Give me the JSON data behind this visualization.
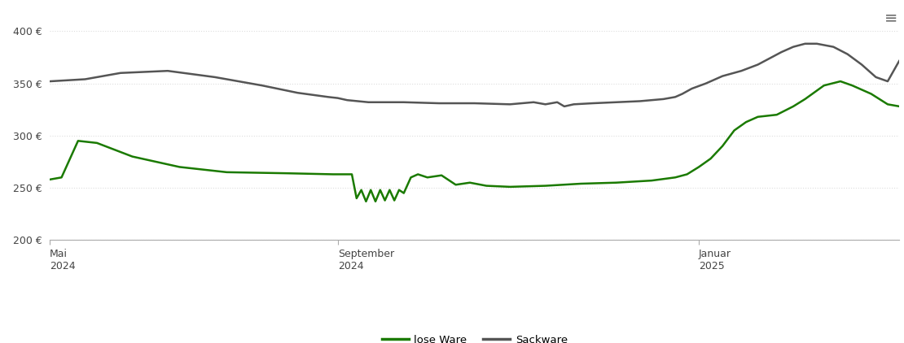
{
  "background_color": "#ffffff",
  "plot_bg_color": "#ffffff",
  "grid_color": "#dddddd",
  "loose_ware_color": "#1a7a00",
  "sack_ware_color": "#555555",
  "ylim": [
    200,
    420
  ],
  "yticks": [
    200,
    250,
    300,
    350,
    400
  ],
  "legend_labels": [
    "lose Ware",
    "Sackware"
  ],
  "xtick_labels": [
    "Mai\n2024",
    "September\n2024",
    "Januar\n2025"
  ],
  "xtick_positions": [
    0,
    122,
    275
  ],
  "total_days": 360,
  "loose_ware": {
    "x": [
      0,
      5,
      12,
      20,
      35,
      55,
      75,
      100,
      120,
      128,
      130,
      132,
      134,
      136,
      138,
      140,
      142,
      144,
      146,
      148,
      150,
      153,
      156,
      160,
      166,
      172,
      178,
      185,
      195,
      210,
      225,
      240,
      255,
      265,
      270,
      275,
      280,
      285,
      290,
      295,
      300,
      308,
      315,
      320,
      328,
      335,
      340,
      348,
      355,
      360
    ],
    "y": [
      258,
      260,
      295,
      293,
      280,
      270,
      265,
      264,
      263,
      263,
      240,
      248,
      237,
      248,
      237,
      248,
      238,
      248,
      238,
      248,
      245,
      260,
      263,
      260,
      262,
      253,
      255,
      252,
      251,
      252,
      254,
      255,
      257,
      260,
      263,
      270,
      278,
      290,
      305,
      313,
      318,
      320,
      328,
      335,
      348,
      352,
      348,
      340,
      330,
      328
    ]
  },
  "sack_ware": {
    "x": [
      0,
      15,
      30,
      50,
      70,
      90,
      105,
      118,
      122,
      126,
      135,
      150,
      165,
      180,
      195,
      205,
      210,
      215,
      218,
      222,
      230,
      240,
      250,
      255,
      260,
      265,
      268,
      272,
      278,
      285,
      293,
      300,
      305,
      310,
      315,
      320,
      325,
      332,
      338,
      344,
      350,
      355,
      360
    ],
    "y": [
      352,
      354,
      360,
      362,
      356,
      348,
      341,
      337,
      336,
      334,
      332,
      332,
      331,
      331,
      330,
      332,
      330,
      332,
      328,
      330,
      331,
      332,
      333,
      334,
      335,
      337,
      340,
      345,
      350,
      357,
      362,
      368,
      374,
      380,
      385,
      388,
      388,
      385,
      378,
      368,
      356,
      352,
      372
    ]
  }
}
